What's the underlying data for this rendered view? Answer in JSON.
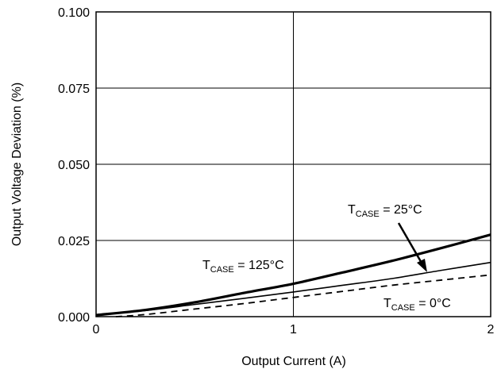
{
  "chart_data": {
    "type": "line",
    "title": "",
    "xlabel": "Output Current (A)",
    "ylabel": "Output Voltage Deviation (%)",
    "xlim": [
      0,
      2
    ],
    "ylim": [
      0,
      0.1
    ],
    "x_ticks": [
      "0",
      "1",
      "2"
    ],
    "y_ticks": [
      "0.000",
      "0.025",
      "0.050",
      "0.075",
      "0.100"
    ],
    "grid": true,
    "legend": "none",
    "series": [
      {
        "name": "TCASE = 25°C",
        "style": "thick-solid",
        "x": [
          0,
          0.25,
          0.5,
          0.75,
          1.0,
          1.25,
          1.5,
          1.75,
          2.0
        ],
        "y": [
          0.0005,
          0.0022,
          0.0047,
          0.0078,
          0.0108,
          0.0145,
          0.0183,
          0.0225,
          0.0269
        ]
      },
      {
        "name": "TCASE = 125°C",
        "style": "thin-solid",
        "x": [
          0,
          0.25,
          0.5,
          0.75,
          1.0,
          1.25,
          1.5,
          1.75,
          2.0
        ],
        "y": [
          0.0005,
          0.002,
          0.004,
          0.006,
          0.0081,
          0.0103,
          0.0125,
          0.0152,
          0.0178
        ]
      },
      {
        "name": "TCASE = 0°C",
        "style": "dashed",
        "x": [
          0.1,
          0.25,
          0.5,
          0.75,
          1.0,
          1.25,
          1.5,
          1.75,
          2.0
        ],
        "y": [
          0.0,
          0.0007,
          0.0025,
          0.0043,
          0.0063,
          0.0083,
          0.0103,
          0.012,
          0.0137
        ]
      }
    ],
    "annotations": [
      {
        "id": "t25",
        "main": "T",
        "sub": "CASE",
        "rest": " = 25°C"
      },
      {
        "id": "t125",
        "main": "T",
        "sub": "CASE",
        "rest": " = 125°C"
      },
      {
        "id": "t0",
        "main": "T",
        "sub": "CASE",
        "rest": " = 0°C"
      }
    ]
  }
}
